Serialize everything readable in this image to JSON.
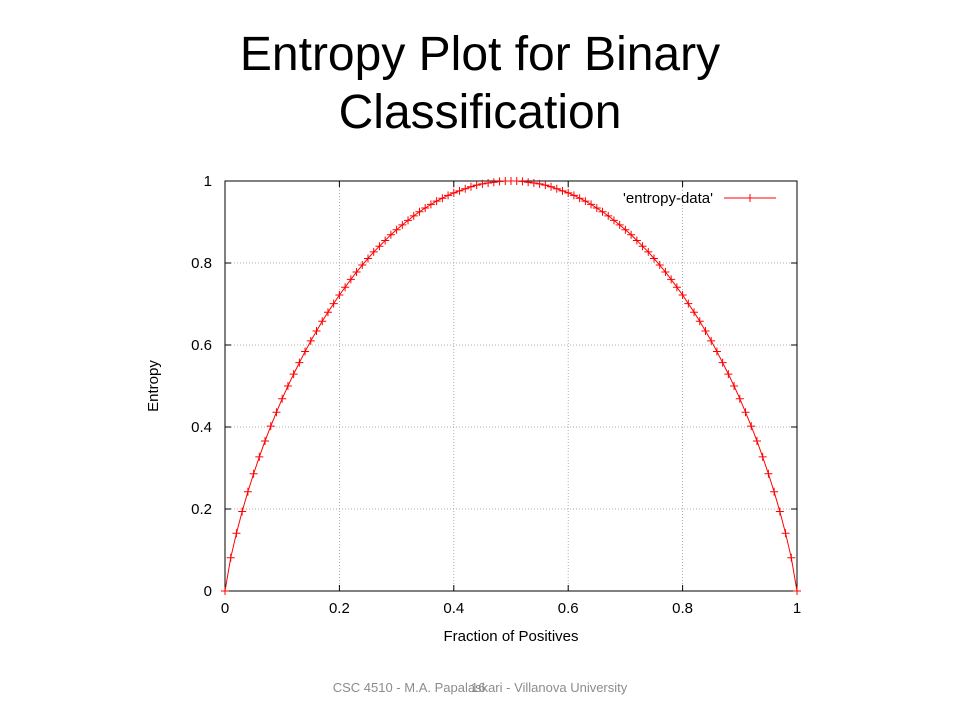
{
  "slide": {
    "title_line1": "Entropy Plot for Binary",
    "title_line2": "Classification",
    "footer": "CSC 4510 - M.A. Papalaskari - Villanova University",
    "page_number": "16"
  },
  "chart_data": {
    "type": "line",
    "title": "",
    "xlabel": "Fraction of Positives",
    "ylabel": "Entropy",
    "xlim": [
      0,
      1
    ],
    "ylim": [
      0,
      1
    ],
    "xticks": [
      "0",
      "0.2",
      "0.4",
      "0.6",
      "0.8",
      "1"
    ],
    "yticks": [
      "0",
      "0.2",
      "0.4",
      "0.6",
      "0.8",
      "1"
    ],
    "grid": true,
    "legend": {
      "position": "top-right",
      "entries": [
        "'entropy-data'"
      ]
    },
    "colors": {
      "series": "#ff0000",
      "axis": "#000000",
      "grid": "#999999"
    },
    "series": [
      {
        "name": "'entropy-data'",
        "marker": "plus",
        "x": [
          0,
          0.01,
          0.02,
          0.03,
          0.04,
          0.05,
          0.06,
          0.07,
          0.08,
          0.09,
          0.1,
          0.11,
          0.12,
          0.13,
          0.14,
          0.15,
          0.16,
          0.17,
          0.18,
          0.19,
          0.2,
          0.21,
          0.22,
          0.23,
          0.24,
          0.25,
          0.26,
          0.27,
          0.28,
          0.29,
          0.3,
          0.31,
          0.32,
          0.33,
          0.34,
          0.35,
          0.36,
          0.37,
          0.38,
          0.39,
          0.4,
          0.41,
          0.42,
          0.43,
          0.44,
          0.45,
          0.46,
          0.47,
          0.48,
          0.49,
          0.5,
          0.51,
          0.52,
          0.53,
          0.54,
          0.55,
          0.56,
          0.57,
          0.58,
          0.59,
          0.6,
          0.61,
          0.62,
          0.63,
          0.64,
          0.65,
          0.66,
          0.67,
          0.68,
          0.69,
          0.7,
          0.71,
          0.72,
          0.73,
          0.74,
          0.75,
          0.76,
          0.77,
          0.78,
          0.79,
          0.8,
          0.81,
          0.82,
          0.83,
          0.84,
          0.85,
          0.86,
          0.87,
          0.88,
          0.89,
          0.9,
          0.91,
          0.92,
          0.93,
          0.94,
          0.95,
          0.96,
          0.97,
          0.98,
          0.99,
          1
        ],
        "y": [
          0,
          0.081,
          0.141,
          0.194,
          0.242,
          0.286,
          0.327,
          0.366,
          0.402,
          0.436,
          0.469,
          0.5,
          0.529,
          0.557,
          0.584,
          0.61,
          0.634,
          0.658,
          0.68,
          0.701,
          0.722,
          0.741,
          0.76,
          0.778,
          0.795,
          0.811,
          0.827,
          0.841,
          0.855,
          0.869,
          0.881,
          0.893,
          0.904,
          0.915,
          0.925,
          0.934,
          0.943,
          0.951,
          0.958,
          0.965,
          0.971,
          0.976,
          0.981,
          0.986,
          0.99,
          0.993,
          0.995,
          0.997,
          0.999,
          1,
          1,
          1,
          0.999,
          0.997,
          0.995,
          0.993,
          0.99,
          0.986,
          0.981,
          0.976,
          0.971,
          0.965,
          0.958,
          0.951,
          0.943,
          0.934,
          0.925,
          0.915,
          0.904,
          0.893,
          0.881,
          0.869,
          0.855,
          0.841,
          0.827,
          0.811,
          0.795,
          0.778,
          0.76,
          0.741,
          0.722,
          0.701,
          0.68,
          0.658,
          0.634,
          0.61,
          0.584,
          0.557,
          0.529,
          0.5,
          0.469,
          0.436,
          0.402,
          0.366,
          0.327,
          0.286,
          0.242,
          0.194,
          0.141,
          0.081,
          0
        ]
      }
    ]
  }
}
